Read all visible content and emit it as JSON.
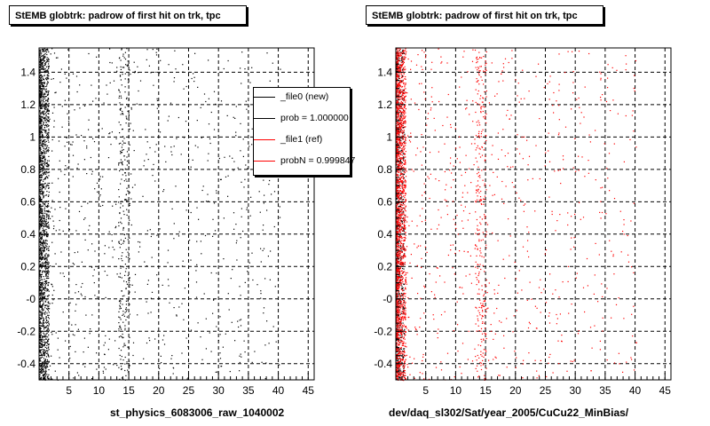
{
  "panels": [
    {
      "title": "StEMB globtrk: padrow of first hit on trk, tpc",
      "xlabel": "st_physics_6083006_raw_1040002",
      "legend": [
        {
          "label": "_file0 (new)",
          "color": "#000000"
        },
        {
          "label": "prob = 1.000000",
          "color": "#000000"
        },
        {
          "label": "_file1 (ref)",
          "color": "#ff0000"
        },
        {
          "label": "probN = 0.999847",
          "color": "#ff0000"
        }
      ]
    },
    {
      "title": "StEMB globtrk: padrow of first hit on trk, tpc",
      "xlabel": "dev/daq_sl302/Sat/year_2005/CuCu22_MinBias/"
    }
  ],
  "chart_data": [
    {
      "type": "scatter",
      "title": "StEMB globtrk: padrow of first hit on trk, tpc",
      "xlabel": "st_physics_6083006_raw_1040002",
      "ylabel": "",
      "xlim": [
        0,
        46
      ],
      "ylim": [
        -0.5,
        1.55
      ],
      "xticks": [
        5,
        10,
        15,
        20,
        25,
        30,
        35,
        40,
        45
      ],
      "yticks": [
        "-0.4",
        "-0.2",
        "-0",
        "0.2",
        "0.4",
        "0.6",
        "0.8",
        "1",
        "1.2",
        "1.4"
      ],
      "ytick_values": [
        -0.4,
        -0.2,
        0,
        0.2,
        0.4,
        0.6,
        0.8,
        1.0,
        1.2,
        1.4
      ],
      "grid": true,
      "legend_position": "top-right",
      "series": [
        {
          "name": "_file0 (new)",
          "color": "#000000",
          "density": "very dense for x < 1.5, moderate band near x = 13–15, sparse elsewhere, ending near x = 40"
        }
      ]
    },
    {
      "type": "scatter",
      "title": "StEMB globtrk: padrow of first hit on trk, tpc",
      "xlabel": "dev/daq_sl302/Sat/year_2005/CuCu22_MinBias/",
      "ylabel": "",
      "xlim": [
        0,
        46
      ],
      "ylim": [
        -0.5,
        1.55
      ],
      "xticks": [
        5,
        10,
        15,
        20,
        25,
        30,
        35,
        40,
        45
      ],
      "yticks": [
        "-0.4",
        "-0.2",
        "-0",
        "0.2",
        "0.4",
        "0.6",
        "0.8",
        "1",
        "1.2",
        "1.4"
      ],
      "ytick_values": [
        -0.4,
        -0.2,
        0,
        0.2,
        0.4,
        0.6,
        0.8,
        1.0,
        1.2,
        1.4
      ],
      "grid": true,
      "series": [
        {
          "name": "_file0 (new)",
          "color": "#000000",
          "density": "very dense for x < 1.5"
        },
        {
          "name": "_file1 (ref)",
          "color": "#ff0000",
          "density": "very dense for x < 1.5, moderate band near x = 13–15, sparse elsewhere, ending near x = 40"
        }
      ]
    }
  ]
}
